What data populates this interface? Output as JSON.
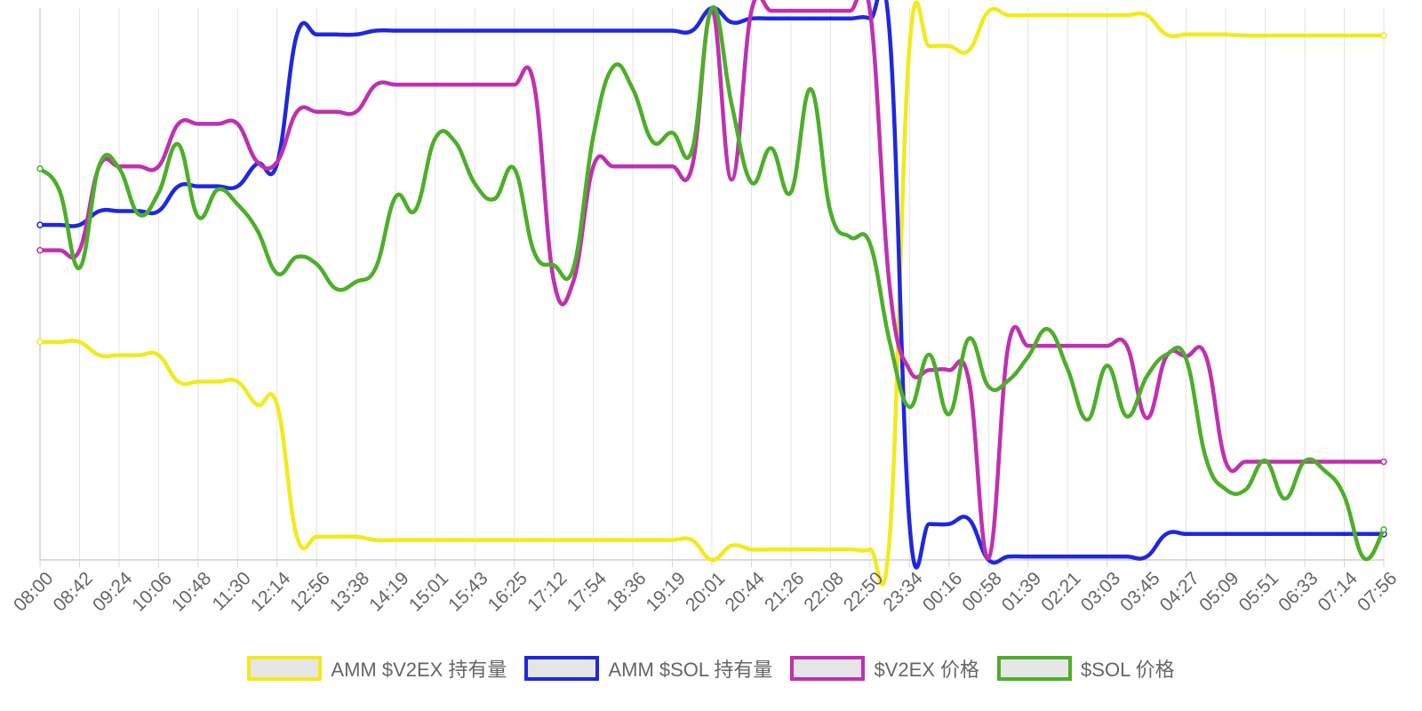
{
  "chart_data": {
    "type": "line",
    "x": [
      "08:00",
      "08:21",
      "08:42",
      "09:03",
      "09:24",
      "09:45",
      "10:06",
      "10:27",
      "10:48",
      "11:09",
      "11:30",
      "11:51",
      "12:14",
      "12:35",
      "12:56",
      "13:17",
      "13:38",
      "13:59",
      "14:19",
      "14:40",
      "15:01",
      "15:22",
      "15:43",
      "16:04",
      "16:25",
      "16:46",
      "17:12",
      "17:33",
      "17:54",
      "18:15",
      "18:36",
      "18:57",
      "19:19",
      "19:40",
      "20:01",
      "20:22",
      "20:44",
      "21:05",
      "21:26",
      "21:47",
      "22:08",
      "22:29",
      "22:50",
      "23:12",
      "23:34",
      "23:55",
      "00:16",
      "00:37",
      "00:58",
      "01:19",
      "01:39",
      "02:00",
      "02:21",
      "02:42",
      "03:03",
      "03:24",
      "03:45",
      "04:06",
      "04:27",
      "04:48",
      "05:09",
      "05:30",
      "05:51",
      "06:12",
      "06:33",
      "06:54",
      "07:14",
      "07:35",
      "07:56"
    ],
    "x_ticks": [
      "08:00",
      "08:42",
      "09:24",
      "10:06",
      "10:48",
      "11:30",
      "12:14",
      "12:56",
      "13:38",
      "14:19",
      "15:01",
      "15:43",
      "16:25",
      "17:12",
      "17:54",
      "18:36",
      "19:19",
      "20:01",
      "20:44",
      "21:26",
      "22:08",
      "22:50",
      "23:34",
      "00:16",
      "00:58",
      "01:39",
      "02:21",
      "03:03",
      "03:45",
      "04:27",
      "05:09",
      "05:51",
      "06:33",
      "07:14",
      "07:56"
    ],
    "ylim": [
      0,
      100
    ],
    "grid": true,
    "legend_position": "bottom",
    "series": [
      {
        "name": "AMM $V2EX 持有量",
        "color": "#f2ea1d",
        "values": [
          39.5,
          39.5,
          39.5,
          37.1,
          37.1,
          37.1,
          37.1,
          32.3,
          32.3,
          32.3,
          32.3,
          28.1,
          28.1,
          4.2,
          4.2,
          4.2,
          4.2,
          3.6,
          3.6,
          3.6,
          3.6,
          3.6,
          3.6,
          3.6,
          3.6,
          3.6,
          3.6,
          3.6,
          3.6,
          3.6,
          3.6,
          3.6,
          3.6,
          3.6,
          0,
          2.6,
          1.9,
          1.9,
          1.9,
          1.9,
          1.9,
          1.9,
          1.9,
          4.2,
          93.1,
          93.1,
          93.1,
          92.3,
          99.4,
          98.7,
          98.7,
          98.7,
          98.7,
          98.7,
          98.7,
          98.7,
          98.7,
          95.2,
          95.2,
          95.2,
          95.2,
          95.0,
          95.0,
          95.0,
          95.0,
          95.0,
          95.0,
          95.0,
          95.0
        ]
      },
      {
        "name": "AMM $SOL 持有量",
        "color": "#1f27e0",
        "values": [
          60.7,
          60.7,
          60.7,
          63.2,
          63.2,
          63.2,
          63.2,
          67.7,
          67.7,
          67.7,
          67.7,
          71.8,
          71.8,
          95.2,
          95.2,
          95.2,
          95.2,
          95.9,
          95.9,
          95.9,
          95.9,
          95.9,
          95.9,
          95.9,
          95.9,
          95.9,
          95.9,
          95.9,
          95.9,
          95.9,
          95.9,
          95.9,
          95.9,
          95.9,
          100,
          97.4,
          98.1,
          98.1,
          98.1,
          98.1,
          98.1,
          98.1,
          98.1,
          95.2,
          6.5,
          6.5,
          6.5,
          7.4,
          0,
          0.6,
          0.6,
          0.6,
          0.6,
          0.6,
          0.6,
          0.6,
          0.6,
          4.7,
          4.7,
          4.7,
          4.7,
          4.7,
          4.7,
          4.7,
          4.7,
          4.7,
          4.7,
          4.7,
          4.7
        ]
      },
      {
        "name": "$V2EX 价格",
        "color": "#c030b0",
        "values": [
          56.1,
          56.1,
          56.1,
          71.3,
          71.3,
          71.3,
          71.3,
          79.0,
          79.0,
          79.0,
          79.0,
          72.1,
          72.1,
          81.2,
          81.2,
          81.2,
          81.2,
          86.1,
          86.1,
          86.1,
          86.1,
          86.1,
          86.1,
          86.1,
          86.1,
          86.1,
          50.6,
          50.6,
          71.3,
          71.3,
          71.3,
          71.3,
          71.3,
          71.3,
          99.5,
          68.9,
          99.5,
          99.5,
          99.5,
          99.5,
          99.5,
          99.5,
          99.5,
          49.4,
          34.4,
          34.4,
          34.4,
          32.6,
          0.3,
          38.8,
          38.8,
          38.8,
          38.8,
          38.8,
          38.8,
          38.8,
          25.7,
          36.9,
          36.9,
          36.9,
          17.8,
          17.8,
          17.8,
          17.8,
          17.8,
          17.8,
          17.8,
          17.8,
          17.8
        ]
      },
      {
        "name": "$SOL 价格",
        "color": "#4caf28",
        "values": [
          70.9,
          66.8,
          52.9,
          71.5,
          71.0,
          62.6,
          66.5,
          75.3,
          62.2,
          67.1,
          64.4,
          59.7,
          51.9,
          54.9,
          53.6,
          49.1,
          50.4,
          53.0,
          65.8,
          63.4,
          76.4,
          75.8,
          68.2,
          65.4,
          70.9,
          55.8,
          53.4,
          53.0,
          76.8,
          89.3,
          85.3,
          75.8,
          77.4,
          74.3,
          100,
          82.6,
          68.4,
          74.6,
          66.6,
          85.3,
          63.1,
          58.5,
          57.3,
          39.5,
          27.7,
          37.2,
          26.4,
          40.1,
          31.4,
          32.5,
          36.8,
          41.8,
          34.6,
          25.4,
          35.2,
          26.0,
          33.2,
          37.2,
          36.4,
          18.4,
          12.8,
          12.7,
          18.0,
          11.1,
          17.9,
          16.2,
          11.6,
          0.3,
          5.5
        ]
      }
    ]
  }
}
